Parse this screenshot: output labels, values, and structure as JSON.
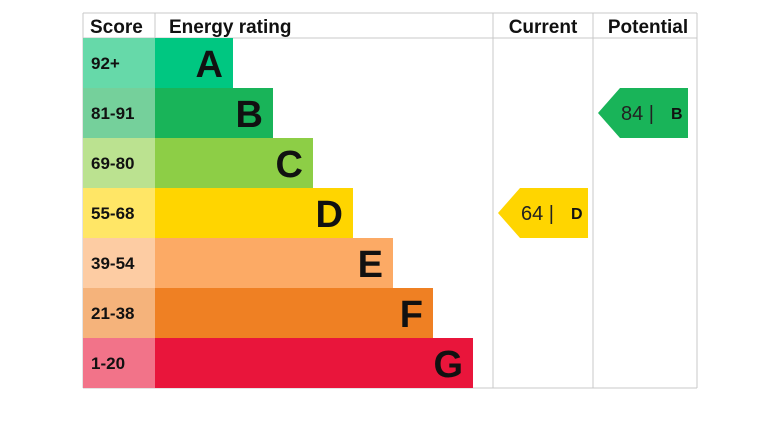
{
  "chart_data": {
    "type": "table",
    "headers": {
      "score": "Score",
      "rating": "Energy rating",
      "current": "Current",
      "potential": "Potential"
    },
    "bands": [
      {
        "score": "92+",
        "letter": "A",
        "color": "#00c781",
        "score_bg": "#66d9a9"
      },
      {
        "score": "81-91",
        "letter": "B",
        "color": "#19b459",
        "score_bg": "#75d09b"
      },
      {
        "score": "69-80",
        "letter": "C",
        "color": "#8dce46",
        "score_bg": "#bbe290"
      },
      {
        "score": "55-68",
        "letter": "D",
        "color": "#ffd500",
        "score_bg": "#ffe666"
      },
      {
        "score": "39-54",
        "letter": "E",
        "color": "#fcaa65",
        "score_bg": "#fdcca3"
      },
      {
        "score": "21-38",
        "letter": "F",
        "color": "#ef8023",
        "score_bg": "#f5b37b"
      },
      {
        "score": "1-20",
        "letter": "G",
        "color": "#e9153b",
        "score_bg": "#f27389"
      }
    ],
    "current": {
      "value": 64,
      "letter": "D",
      "text": "64 |",
      "color": "#ffd500"
    },
    "potential": {
      "value": 84,
      "letter": "B",
      "text": "84 |",
      "color": "#19b459"
    }
  }
}
